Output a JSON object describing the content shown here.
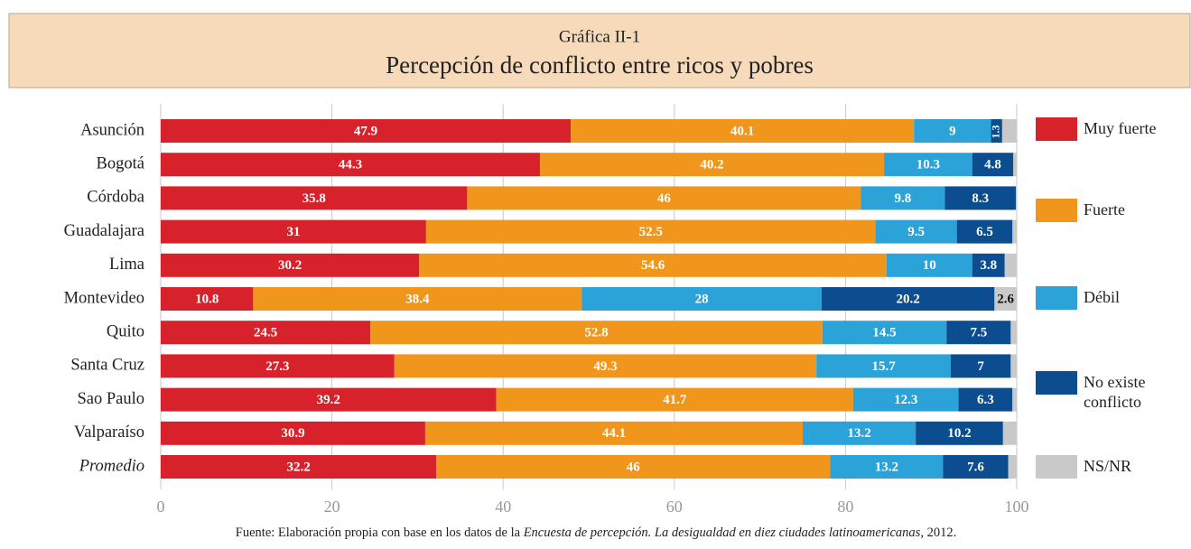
{
  "chart_data": {
    "type": "stacked-bar-horizontal",
    "figure_label": "Gráfica II-1",
    "title": "Percepción de conflicto entre ricos y pobres",
    "categories": [
      "Asunción",
      "Bogotá",
      "Córdoba",
      "Guadalajara",
      "Lima",
      "Montevideo",
      "Quito",
      "Santa Cruz",
      "Sao Paulo",
      "Valparaíso",
      "Promedio"
    ],
    "series": [
      {
        "name": "Muy fuerte",
        "color": "#d7222b",
        "values": [
          47.9,
          44.3,
          35.8,
          31,
          30.2,
          10.8,
          24.5,
          27.3,
          39.2,
          30.9,
          32.2
        ]
      },
      {
        "name": "Fuerte",
        "color": "#f0961c",
        "values": [
          40.1,
          40.2,
          46,
          52.5,
          54.6,
          38.4,
          52.8,
          49.3,
          41.7,
          44.1,
          46
        ]
      },
      {
        "name": "Débil",
        "color": "#2ba3d9",
        "values": [
          9,
          10.3,
          9.8,
          9.5,
          10,
          28,
          14.5,
          15.7,
          12.3,
          13.2,
          13.2
        ]
      },
      {
        "name": "No existe conflicto",
        "color": "#0b4d8e",
        "values": [
          1.3,
          4.8,
          8.3,
          6.5,
          3.8,
          20.2,
          7.5,
          7,
          6.3,
          10.2,
          7.6
        ]
      },
      {
        "name": "NS/NR",
        "color": "#c9c9c9",
        "values": [
          1.7,
          0.4,
          0.1,
          0.5,
          1.4,
          2.6,
          0.7,
          0.7,
          0.5,
          1.6,
          1
        ],
        "value_labels": [
          null,
          null,
          null,
          null,
          null,
          "2.6",
          null,
          null,
          null,
          null,
          null
        ]
      }
    ],
    "xlim": [
      0,
      100
    ],
    "xticks": [
      0,
      20,
      40,
      60,
      80,
      100
    ],
    "grid": true,
    "legend": "right",
    "source": [
      "Fuente: Elaboración propia con base en los datos de la ",
      "Encuesta de percepción. La desigualdad en diez ciudades latinoamericanas,",
      " 2012."
    ]
  }
}
